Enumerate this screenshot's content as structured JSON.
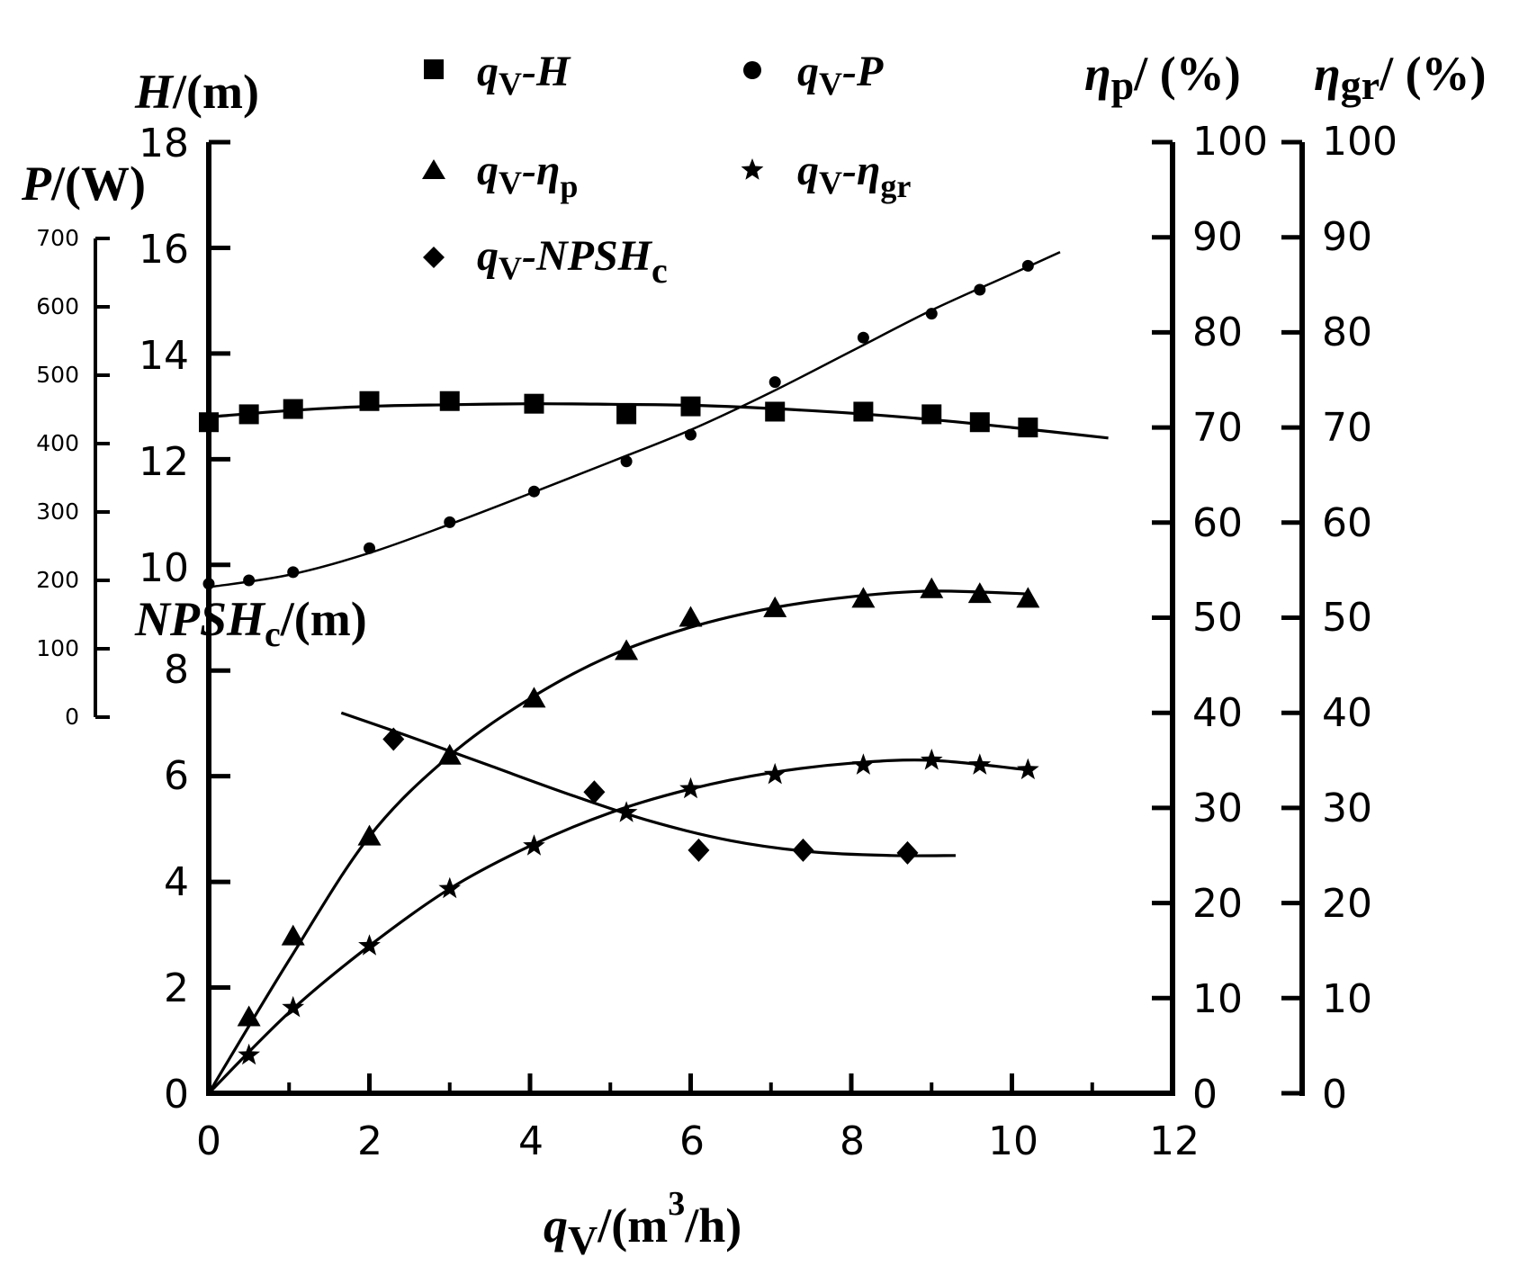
{
  "chart_data": {
    "type": "line",
    "x_axis": {
      "ticks": [
        "0",
        "2",
        "4",
        "6",
        "8",
        "10",
        "12"
      ],
      "range": [
        0,
        12
      ],
      "title": {
        "main": "q",
        "sub": "V",
        "mid": "/(m",
        "sup": "3",
        "tail": "/h)"
      }
    },
    "axes": {
      "H": {
        "title": {
          "main": "H",
          "rest": "/(m)"
        },
        "range": [
          0,
          18
        ],
        "ticks": [
          "10",
          "12",
          "14",
          "16",
          "18"
        ]
      },
      "NPSH": {
        "title": {
          "main": "NPSH",
          "sub": "c",
          "rest": "/(m)"
        },
        "range": [
          0,
          18
        ],
        "ticks": [
          "0",
          "2",
          "4",
          "6",
          "8"
        ]
      },
      "P": {
        "title": {
          "main": "P",
          "rest": "/(W)"
        },
        "range": [
          0,
          700
        ],
        "ticks": [
          "0",
          "100",
          "200",
          "300",
          "400",
          "500",
          "600",
          "700"
        ]
      },
      "eta_p": {
        "title": {
          "main": "η",
          "sub": "p",
          "rest": "/ (%)"
        },
        "range": [
          0,
          100
        ],
        "ticks": [
          "0",
          "10",
          "20",
          "30",
          "40",
          "50",
          "60",
          "70",
          "80",
          "90",
          "100"
        ]
      },
      "eta_gr": {
        "title": {
          "main": "η",
          "sub": "gr",
          "rest": "/ (%)"
        },
        "range": [
          0,
          100
        ],
        "ticks": [
          "0",
          "10",
          "20",
          "30",
          "40",
          "50",
          "60",
          "70",
          "80",
          "90",
          "100"
        ]
      }
    },
    "legend": [
      {
        "main": "q",
        "sub": "V",
        "rest": "-H",
        "rsub": "",
        "marker": "square"
      },
      {
        "main": "q",
        "sub": "V",
        "rest": "-P",
        "rsub": "",
        "marker": "circle"
      },
      {
        "main": "q",
        "sub": "V",
        "rest": "-η",
        "rsub": "p",
        "marker": "triangle"
      },
      {
        "main": "q",
        "sub": "V",
        "rest": "-η",
        "rsub": "gr",
        "marker": "star"
      },
      {
        "main": "q",
        "sub": "V",
        "rest": "-NPSH",
        "rsub": "c",
        "marker": "diamond"
      }
    ],
    "series": [
      {
        "name": "qV-H",
        "axis": "H",
        "marker": "square",
        "x": [
          0,
          0.5,
          1.05,
          2.0,
          3.0,
          4.05,
          5.2,
          6.0,
          7.05,
          8.15,
          9.0,
          9.6,
          10.2
        ],
        "y": [
          12.7,
          12.85,
          12.95,
          13.1,
          13.1,
          13.05,
          12.85,
          13.0,
          12.9,
          12.9,
          12.85,
          12.7,
          12.6
        ],
        "fit_x": [
          0,
          1,
          2,
          3,
          4,
          5,
          6,
          7,
          8,
          9,
          10,
          11.2
        ],
        "fit_y": [
          12.8,
          12.92,
          13.0,
          13.03,
          13.05,
          13.04,
          13.02,
          12.96,
          12.87,
          12.75,
          12.6,
          12.4
        ]
      },
      {
        "name": "qV-P",
        "axis": "P",
        "marker": "circle",
        "x": [
          0,
          0.5,
          1.05,
          2.0,
          3.0,
          4.05,
          5.2,
          6.0,
          7.05,
          8.15,
          9.0,
          9.6,
          10.2
        ],
        "y": [
          195,
          200,
          212,
          247,
          285,
          330,
          374,
          413,
          490,
          555,
          590,
          625,
          660
        ],
        "fit_x": [
          0,
          1,
          2,
          3,
          4,
          5,
          6,
          7,
          8,
          9,
          10,
          10.6
        ],
        "fit_y": [
          190,
          208,
          240,
          282,
          327,
          373,
          420,
          475,
          535,
          595,
          648,
          680
        ]
      },
      {
        "name": "qV-eta_p",
        "axis": "eta_p",
        "marker": "triangle",
        "x": [
          0.5,
          1.05,
          2.0,
          3.0,
          4.05,
          5.2,
          6.0,
          7.05,
          8.15,
          9.0,
          9.6,
          10.2
        ],
        "y": [
          8,
          16.5,
          27,
          35.5,
          41.5,
          46.5,
          50,
          51,
          52,
          53,
          52.5,
          52
        ],
        "fit_x": [
          0,
          1,
          2,
          3,
          4,
          5,
          6,
          7,
          8,
          9,
          10.2
        ],
        "fit_y": [
          0,
          14,
          27,
          35.5,
          41.5,
          46,
          49,
          51,
          52.2,
          52.8,
          52.5
        ]
      },
      {
        "name": "qV-eta_gr",
        "axis": "eta_gr",
        "marker": "star",
        "x": [
          0.5,
          1.05,
          2.0,
          3.0,
          4.05,
          5.2,
          6.0,
          7.05,
          8.15,
          9.0,
          9.6,
          10.2
        ],
        "y": [
          4,
          9,
          15.5,
          21.5,
          26,
          29.5,
          32,
          33.5,
          34.5,
          35,
          34.5,
          34
        ],
        "fit_x": [
          0,
          1,
          2,
          3,
          4,
          5,
          6,
          7,
          8,
          9,
          10.2
        ],
        "fit_y": [
          0,
          8.5,
          15.5,
          21.5,
          26,
          29.5,
          32,
          33.7,
          34.7,
          35,
          34
        ]
      },
      {
        "name": "qV-NPSHc",
        "axis": "NPSH",
        "marker": "diamond",
        "x": [
          2.3,
          4.8,
          6.1,
          7.4,
          8.7
        ],
        "y": [
          6.7,
          5.7,
          4.6,
          4.6,
          4.55
        ],
        "fit_x": [
          1.65,
          2.5,
          3.5,
          4.5,
          5.5,
          6.5,
          7.5,
          8.5,
          9.3
        ],
        "fit_y": [
          7.2,
          6.75,
          6.2,
          5.65,
          5.15,
          4.78,
          4.57,
          4.5,
          4.5
        ]
      }
    ]
  }
}
